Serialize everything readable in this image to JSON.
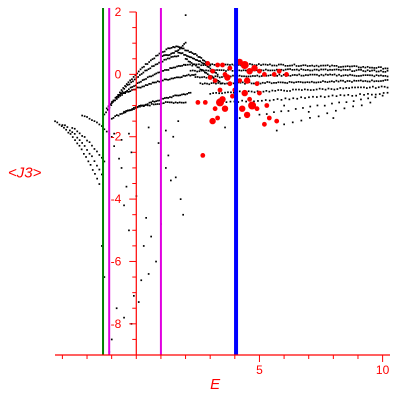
{
  "chart_data": {
    "type": "scatter",
    "title": "",
    "xlabel": "E",
    "ylabel": "<J3>",
    "xlim": [
      -3.3,
      10.3
    ],
    "ylim": [
      -9,
      2
    ],
    "x_ticks": [
      5,
      10
    ],
    "y_ticks": [
      2,
      0,
      -2,
      -4,
      -6,
      -8
    ],
    "x_tick_labels": [
      "5",
      "10"
    ],
    "y_tick_labels": [
      "2",
      "0",
      "-2",
      "-4",
      "-6",
      "-8"
    ],
    "grid": false,
    "colors": {
      "axis": "#ff0000",
      "black_points": "#000000",
      "red_points": "#ff0000",
      "green_line": "#008000",
      "magenta_line": "#e000e0",
      "blue_line": "#0000ff"
    },
    "vertical_lines": [
      {
        "x": -1.35,
        "color": "#008000"
      },
      {
        "x": -1.1,
        "color": "#e000e0"
      },
      {
        "x": 1.0,
        "color": "#e000e0"
      },
      {
        "x": 4.05,
        "color": "#0000ff"
      }
    ],
    "series": [
      {
        "marker": "small-dot",
        "color": "#000000",
        "bands": [
          {
            "x0": -3.3,
            "x1": -1.5,
            "y0": -1.5,
            "y1": -3.5,
            "sag": 0.3,
            "step": 0.09
          },
          {
            "x0": -3.0,
            "x1": -1.4,
            "y0": -1.6,
            "y1": -3.2,
            "sag": 0.2,
            "step": 0.1
          },
          {
            "x0": -2.6,
            "x1": -1.3,
            "y0": -1.7,
            "y1": -2.8,
            "sag": 0.1,
            "step": 0.1
          },
          {
            "x0": -2.2,
            "x1": -1.0,
            "y0": -1.3,
            "y1": -2.0,
            "sag": 0.1,
            "step": 0.1
          },
          {
            "x0": -1.3,
            "x1": 1.5,
            "y0": -1.3,
            "y1": 0.9,
            "sag": 0.3,
            "step": 0.07
          },
          {
            "x0": -1.2,
            "x1": 1.7,
            "y0": -1.1,
            "y1": 0.6,
            "sag": 0.3,
            "step": 0.07
          },
          {
            "x0": -1.0,
            "x1": 2.0,
            "y0": -0.9,
            "y1": 0.3,
            "sag": 0.2,
            "step": 0.07
          },
          {
            "x0": -0.8,
            "x1": 2.4,
            "y0": -0.7,
            "y1": 0.0,
            "sag": 0.1,
            "step": 0.07
          },
          {
            "x0": -1.0,
            "x1": 2.2,
            "y0": -1.4,
            "y1": -0.6,
            "sag": 0.1,
            "step": 0.07
          },
          {
            "x0": -0.5,
            "x1": 2.0,
            "y0": -1.2,
            "y1": -0.9,
            "sag": 0.1,
            "step": 0.08
          },
          {
            "x0": 1.0,
            "x1": 2.0,
            "y0": 0.6,
            "y1": 1.0,
            "sag": -0.1,
            "step": 0.06
          },
          {
            "x0": 1.5,
            "x1": 3.0,
            "y0": 0.9,
            "y1": 0.3,
            "sag": 0.1,
            "step": 0.06
          },
          {
            "x0": 1.7,
            "x1": 3.3,
            "y0": 0.7,
            "y1": 0.0,
            "sag": 0.1,
            "step": 0.06
          },
          {
            "x0": 2.0,
            "x1": 3.5,
            "y0": 0.5,
            "y1": -0.3,
            "sag": 0.0,
            "step": 0.06
          },
          {
            "x0": 2.0,
            "x1": 10.2,
            "y0": 0.3,
            "y1": 0.2,
            "sag": 0.05,
            "step": 0.09
          },
          {
            "x0": 2.2,
            "x1": 10.2,
            "y0": 0.1,
            "y1": 0.1,
            "sag": 0.05,
            "step": 0.09
          },
          {
            "x0": 2.4,
            "x1": 10.2,
            "y0": -0.1,
            "y1": -0.05,
            "sag": 0.05,
            "step": 0.09
          },
          {
            "x0": 2.6,
            "x1": 10.2,
            "y0": -0.3,
            "y1": -0.2,
            "sag": 0.0,
            "step": 0.09
          },
          {
            "x0": 3.0,
            "x1": 10.2,
            "y0": -0.6,
            "y1": -0.4,
            "sag": 0.0,
            "step": 0.12
          },
          {
            "x0": 3.5,
            "x1": 10.2,
            "y0": -0.9,
            "y1": -0.6,
            "sag": 0.0,
            "step": 0.16
          },
          {
            "x0": 5.0,
            "x1": 10.0,
            "y0": -1.3,
            "y1": -0.7,
            "sag": 0.0,
            "step": 0.3
          },
          {
            "x0": 6.0,
            "x1": 9.5,
            "y0": -1.6,
            "y1": -0.9,
            "sag": 0.0,
            "step": 0.35
          }
        ],
        "points": [
          [
            -0.9,
            -1.9
          ],
          [
            -0.9,
            -2.3
          ],
          [
            -0.7,
            -2.7
          ],
          [
            -0.6,
            -3.0
          ],
          [
            -0.2,
            -2.5
          ],
          [
            -0.4,
            -3.6
          ],
          [
            -0.5,
            -4.2
          ],
          [
            -0.3,
            -5.0
          ],
          [
            0.3,
            -5.5
          ],
          [
            0.5,
            -6.4
          ],
          [
            0.2,
            -6.6
          ],
          [
            -0.1,
            -7.1
          ],
          [
            -0.8,
            -7.5
          ],
          [
            -0.5,
            -7.8
          ],
          [
            0.1,
            -7.3
          ],
          [
            1.2,
            -3.0
          ],
          [
            1.8,
            -4.0
          ],
          [
            1.9,
            -4.5
          ],
          [
            1.5,
            -2.0
          ],
          [
            0.8,
            -6.0
          ],
          [
            -1.0,
            -8.5
          ],
          [
            -1.1,
            -8.9
          ],
          [
            -0.2,
            -8.0
          ],
          [
            1.4,
            -3.4
          ],
          [
            1.0,
            -4.8
          ],
          [
            -1.4,
            -5.5
          ],
          [
            -1.3,
            -6.5
          ],
          [
            1.7,
            -1.5
          ],
          [
            1.2,
            -1.8
          ],
          [
            0.6,
            -5.2
          ],
          [
            0.4,
            -4.6
          ],
          [
            0.0,
            -3.9
          ],
          [
            1.6,
            -3.3
          ],
          [
            1.3,
            -2.6
          ],
          [
            2.0,
            1.9
          ],
          [
            3.6,
            -1.7
          ],
          [
            4.2,
            -1.4
          ],
          [
            5.7,
            -1.8
          ],
          [
            6.0,
            -1.0
          ],
          [
            7.0,
            -1.2
          ],
          [
            8.0,
            -1.4
          ],
          [
            -0.6,
            -2.1
          ],
          [
            -0.3,
            -1.9
          ],
          [
            0.9,
            -2.2
          ],
          [
            0.5,
            -1.7
          ]
        ]
      },
      {
        "marker": "large-dot",
        "color": "#ff0000",
        "points": [
          [
            2.9,
            0.35,
            3
          ],
          [
            3.1,
            0.1,
            3
          ],
          [
            3.2,
            -0.2,
            3
          ],
          [
            3.4,
            -0.5,
            3
          ],
          [
            3.3,
            0.3,
            3
          ],
          [
            3.6,
            0.0,
            3
          ],
          [
            3.7,
            -0.1,
            4
          ],
          [
            3.8,
            -0.3,
            3
          ],
          [
            3.5,
            -0.8,
            4
          ],
          [
            3.4,
            -0.9,
            5
          ],
          [
            3.6,
            -1.1,
            4
          ],
          [
            3.9,
            -0.7,
            3
          ],
          [
            4.2,
            0.4,
            4
          ],
          [
            4.4,
            0.3,
            5
          ],
          [
            4.6,
            0.1,
            4
          ],
          [
            4.5,
            -0.2,
            4
          ],
          [
            4.8,
            0.2,
            4
          ],
          [
            5.0,
            0.1,
            3
          ],
          [
            5.2,
            0.0,
            3
          ],
          [
            4.9,
            -0.3,
            3
          ],
          [
            4.4,
            -0.6,
            4
          ],
          [
            4.6,
            -0.8,
            3
          ],
          [
            4.7,
            -1.0,
            5
          ],
          [
            4.3,
            -1.1,
            4
          ],
          [
            4.5,
            -1.3,
            4
          ],
          [
            3.3,
            -1.4,
            3
          ],
          [
            3.1,
            -1.5,
            4
          ],
          [
            2.8,
            -0.9,
            3
          ],
          [
            2.5,
            -0.9,
            3
          ],
          [
            5.3,
            -1.0,
            3
          ],
          [
            5.8,
            0.1,
            3
          ],
          [
            5.6,
            0.0,
            3
          ],
          [
            6.1,
            0.0,
            3
          ],
          [
            5.4,
            -1.4,
            3
          ],
          [
            5.2,
            -1.6,
            3
          ],
          [
            4.2,
            -0.2,
            3
          ],
          [
            3.0,
            -0.1,
            3
          ],
          [
            3.8,
            0.2,
            3
          ],
          [
            4.0,
            -0.5,
            3
          ],
          [
            2.7,
            -2.6,
            3
          ],
          [
            5.7,
            -1.5,
            3
          ],
          [
            4.9,
            -1.1,
            3
          ],
          [
            3.5,
            0.3,
            3
          ],
          [
            3.2,
            -1.1,
            3
          ],
          [
            5.0,
            -0.6,
            3
          ]
        ]
      }
    ]
  }
}
